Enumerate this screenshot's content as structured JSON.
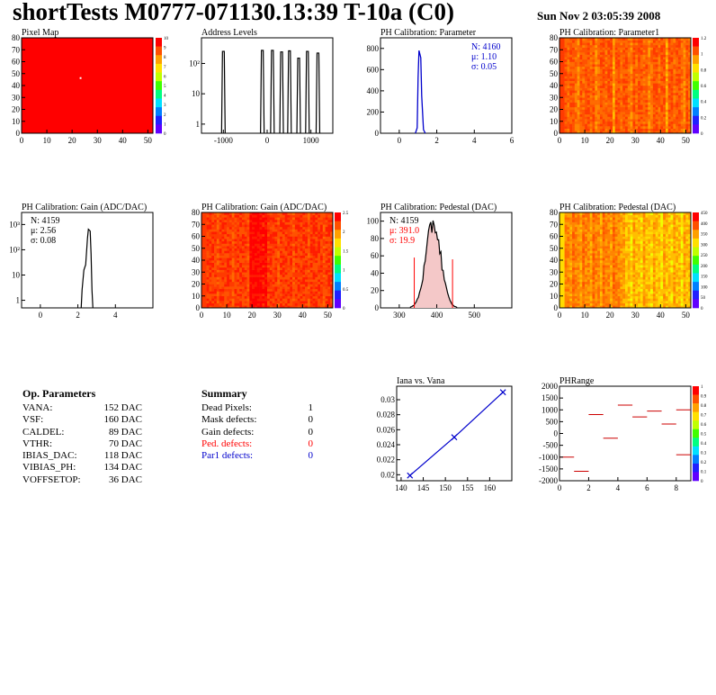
{
  "header": {
    "title": "shortTests M0777-071130.13:39 T-10a (C0)",
    "date": "Sun Nov  2 03:05:39 2008"
  },
  "colors": {
    "hist_red": "#ff0000",
    "blue": "#0000cc",
    "red": "#ff0000",
    "heat_base": "#ff3a00"
  },
  "panels": {
    "pixel_map": {
      "title": "Pixel Map",
      "xticks": [
        "0",
        "10",
        "20",
        "30",
        "40",
        "50"
      ],
      "yticks": [
        "0",
        "10",
        "20",
        "30",
        "40",
        "50",
        "60",
        "70",
        "80"
      ],
      "scale": [
        "0",
        "1",
        "2",
        "3",
        "4",
        "5",
        "6",
        "7",
        "8",
        "9",
        "10"
      ]
    },
    "address_levels": {
      "title": "Address Levels",
      "xticks": [
        "-1000",
        "0",
        "1000"
      ],
      "yticks": [
        "1",
        "10",
        "10²"
      ]
    },
    "ph_param": {
      "title": "PH Calibration: Parameter",
      "xticks": [
        "0",
        "2",
        "4",
        "6"
      ],
      "yticks": [
        "0",
        "200",
        "400",
        "600",
        "800"
      ],
      "stats": [
        "N: 4160",
        "μ: 1.10",
        "σ: 0.05"
      ]
    },
    "ph_param1": {
      "title": "PH Calibration: Parameter1",
      "xticks": [
        "0",
        "10",
        "20",
        "30",
        "40",
        "50"
      ],
      "yticks": [
        "0",
        "10",
        "20",
        "30",
        "40",
        "50",
        "60",
        "70",
        "80"
      ],
      "scale": [
        "0",
        "0.2",
        "0.4",
        "0.6",
        "0.8",
        "1",
        "1.2"
      ]
    },
    "ph_gain_hist": {
      "title": "PH Calibration: Gain (ADC/DAC)",
      "xticks": [
        "0",
        "2",
        "4"
      ],
      "yticks": [
        "1",
        "10",
        "10²",
        "10³"
      ],
      "stats": [
        "N: 4159",
        "μ: 2.56",
        "σ: 0.08"
      ]
    },
    "ph_gain_map": {
      "title": "PH Calibration: Gain (ADC/DAC)",
      "xticks": [
        "0",
        "10",
        "20",
        "30",
        "40",
        "50"
      ],
      "yticks": [
        "0",
        "10",
        "20",
        "30",
        "40",
        "50",
        "60",
        "70",
        "80"
      ],
      "scale": [
        "0",
        "0.5",
        "1",
        "1.5",
        "2",
        "2.5"
      ]
    },
    "ph_ped_hist": {
      "title": "PH Calibration: Pedestal (DAC)",
      "xticks": [
        "300",
        "400",
        "500"
      ],
      "yticks": [
        "0",
        "20",
        "40",
        "60",
        "80",
        "100"
      ],
      "stats": [
        "N: 4159",
        "μ: 391.0",
        "σ: 19.9"
      ]
    },
    "ph_ped_map": {
      "title": "PH Calibration: Pedestal (DAC)",
      "xticks": [
        "0",
        "10",
        "20",
        "30",
        "40",
        "50"
      ],
      "yticks": [
        "0",
        "10",
        "20",
        "30",
        "40",
        "50",
        "60",
        "70",
        "80"
      ],
      "scale": [
        "0",
        "50",
        "100",
        "150",
        "200",
        "250",
        "300",
        "350",
        "400",
        "450"
      ]
    },
    "iana_vana": {
      "title": "Iana vs. Vana",
      "xticks": [
        "140",
        "145",
        "150",
        "155",
        "160"
      ],
      "yticks": [
        "0.02",
        "0.022",
        "0.024",
        "0.026",
        "0.028",
        "0.03"
      ]
    },
    "phrange": {
      "title": "PHRange",
      "xticks": [
        "0",
        "2",
        "4",
        "6",
        "8"
      ],
      "yticks": [
        "-2000",
        "-1500",
        "-1000",
        "-500",
        "0",
        "500",
        "1000",
        "1500",
        "2000"
      ],
      "scale": [
        "0",
        "0.1",
        "0.2",
        "0.3",
        "0.4",
        "0.5",
        "0.6",
        "0.7",
        "0.8",
        "0.9",
        "1"
      ]
    }
  },
  "op_params": {
    "title": "Op. Parameters",
    "rows": [
      {
        "label": "VANA:",
        "value": "152 DAC"
      },
      {
        "label": "VSF:",
        "value": "160 DAC"
      },
      {
        "label": "CALDEL:",
        "value": "89 DAC"
      },
      {
        "label": "VTHR:",
        "value": "70 DAC"
      },
      {
        "label": "IBIAS_DAC:",
        "value": "118 DAC"
      },
      {
        "label": "VIBIAS_PH:",
        "value": "134 DAC"
      },
      {
        "label": "VOFFSETOP:",
        "value": "36 DAC"
      }
    ]
  },
  "summary": {
    "title": "Summary",
    "rows": [
      {
        "label": "Dead Pixels:",
        "value": "1",
        "color": "#000000"
      },
      {
        "label": "Mask defects:",
        "value": "0",
        "color": "#000000"
      },
      {
        "label": "Gain defects:",
        "value": "0",
        "color": "#000000"
      },
      {
        "label": "Ped. defects:",
        "value": "0",
        "color": "#ff0000"
      },
      {
        "label": "Par1 defects:",
        "value": "0",
        "color": "#0000cc"
      }
    ]
  },
  "chart_data": [
    {
      "type": "heatmap",
      "title": "Pixel Map",
      "xlim": [
        0,
        52
      ],
      "ylim": [
        0,
        80
      ],
      "zlim": [
        0,
        10
      ],
      "fill_value": 10,
      "dead_pixels": [
        [
          23,
          47
        ]
      ]
    },
    {
      "type": "bar",
      "title": "Address Levels",
      "xlim": [
        -1500,
        1500
      ],
      "log_y": true,
      "peaks": [
        {
          "x": -1000,
          "height": 250
        },
        {
          "x": -110,
          "height": 270
        },
        {
          "x": 120,
          "height": 270
        },
        {
          "x": 330,
          "height": 240
        },
        {
          "x": 510,
          "height": 260
        },
        {
          "x": 720,
          "height": 150
        },
        {
          "x": 920,
          "height": 250
        },
        {
          "x": 1160,
          "height": 220
        }
      ]
    },
    {
      "type": "bar",
      "title": "PH Calibration: Parameter",
      "xlim": [
        -1,
        6
      ],
      "ylim": [
        0,
        900
      ],
      "mean": 1.1,
      "sigma": 0.05,
      "peak": 780
    },
    {
      "type": "heatmap",
      "title": "PH Calibration: Parameter1",
      "xlim": [
        0,
        52
      ],
      "ylim": [
        0,
        80
      ],
      "zlim": [
        0,
        1.2
      ]
    },
    {
      "type": "bar",
      "title": "PH Calibration: Gain (ADC/DAC)",
      "xlim": [
        -1,
        6
      ],
      "log_y": true,
      "mean": 2.56,
      "sigma": 0.08,
      "peak": 650
    },
    {
      "type": "heatmap",
      "title": "PH Calibration: Gain (ADC/DAC)",
      "xlim": [
        0,
        52
      ],
      "ylim": [
        0,
        80
      ],
      "zlim": [
        0,
        2.8
      ]
    },
    {
      "type": "bar",
      "title": "PH Calibration: Pedestal (DAC)",
      "xlim": [
        250,
        600
      ],
      "ylim": [
        0,
        110
      ],
      "mean": 391.0,
      "sigma": 19.9,
      "peak": 100,
      "cut_lines": [
        {
          "x": 340,
          "y": 58
        },
        {
          "x": 442,
          "y": 56
        }
      ]
    },
    {
      "type": "heatmap",
      "title": "PH Calibration: Pedestal (DAC)",
      "xlim": [
        0,
        52
      ],
      "ylim": [
        0,
        80
      ],
      "zlim": [
        0,
        480
      ]
    },
    {
      "type": "line",
      "title": "Iana vs. Vana",
      "xlim": [
        139,
        165
      ],
      "ylim": [
        0.0192,
        0.0318
      ],
      "points": [
        [
          142,
          0.0199
        ],
        [
          152,
          0.025
        ],
        [
          163,
          0.031
        ]
      ]
    },
    {
      "type": "scatter",
      "title": "PHRange",
      "xlim": [
        0,
        9
      ],
      "ylim": [
        -2000,
        2000
      ],
      "zlim": [
        0,
        1
      ],
      "segments": [
        {
          "x": 0,
          "y": -1000
        },
        {
          "x": 1,
          "y": -1600
        },
        {
          "x": 2,
          "y": 800
        },
        {
          "x": 3,
          "y": -200
        },
        {
          "x": 4,
          "y": 1200
        },
        {
          "x": 5,
          "y": 700
        },
        {
          "x": 6,
          "y": 950
        },
        {
          "x": 7,
          "y": 400
        },
        {
          "x": 8,
          "y": 1000
        },
        {
          "x": 8,
          "y": -900
        }
      ]
    }
  ]
}
